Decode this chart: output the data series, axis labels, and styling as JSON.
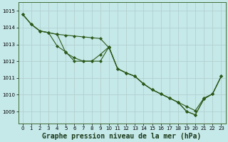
{
  "title": "Graphe pression niveau de la mer (hPa)",
  "bg_color": "#c5e8e8",
  "grid_color": "#b0cccc",
  "line_color": "#2d5a1b",
  "xlim": [
    -0.5,
    23.5
  ],
  "ylim": [
    1008.3,
    1015.5
  ],
  "yticks": [
    1009,
    1010,
    1011,
    1012,
    1013,
    1014,
    1015
  ],
  "xticks": [
    0,
    1,
    2,
    3,
    4,
    5,
    6,
    7,
    8,
    9,
    10,
    11,
    12,
    13,
    14,
    15,
    16,
    17,
    18,
    19,
    20,
    21,
    22,
    23
  ],
  "series1": [
    1014.8,
    1014.2,
    1013.8,
    1013.7,
    1013.6,
    1013.55,
    1013.5,
    1013.45,
    1013.4,
    1013.35,
    1012.8,
    1011.55,
    1011.3,
    1011.1,
    1010.65,
    1010.3,
    1010.05,
    1009.8,
    1009.55,
    1009.3,
    1009.05,
    1009.8,
    1010.05,
    1011.1
  ],
  "series2": [
    1014.8,
    1014.2,
    1013.8,
    1013.7,
    1012.9,
    1012.55,
    1012.0,
    1012.0,
    1012.0,
    1012.4,
    1012.85,
    1011.55,
    1011.3,
    1011.1,
    1010.65,
    1010.3,
    1010.05,
    1009.8,
    1009.55,
    1009.0,
    1008.8,
    1009.75,
    1010.05,
    1011.1
  ],
  "series3": [
    1014.8,
    1014.2,
    1013.8,
    1013.7,
    1013.6,
    1012.5,
    1012.2,
    1012.0,
    1012.0,
    1012.0,
    1012.85,
    1011.55,
    1011.3,
    1011.1,
    1010.65,
    1010.3,
    1010.05,
    1009.8,
    1009.55,
    1009.0,
    1008.8,
    1009.75,
    1010.05,
    1011.1
  ],
  "marker": "D",
  "marker_size": 2.0,
  "line_width": 0.8,
  "title_fontsize": 7,
  "tick_fontsize": 5.0,
  "fig_width": 3.2,
  "fig_height": 2.0,
  "dpi": 100
}
